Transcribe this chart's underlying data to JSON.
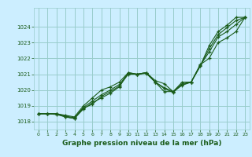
{
  "xlabel": "Graphe pression niveau de la mer (hPa)",
  "xlim": [
    -0.5,
    23.5
  ],
  "ylim": [
    1017.5,
    1025.2
  ],
  "yticks": [
    1018,
    1019,
    1020,
    1021,
    1022,
    1023,
    1024
  ],
  "xticks": [
    0,
    1,
    2,
    3,
    4,
    5,
    6,
    7,
    8,
    9,
    10,
    11,
    12,
    13,
    14,
    15,
    16,
    17,
    18,
    19,
    20,
    21,
    22,
    23
  ],
  "bg_color": "#cceeff",
  "grid_color": "#99cccc",
  "line_color": "#1a5c1a",
  "series": [
    [
      1018.5,
      1018.5,
      1018.5,
      1018.4,
      1018.3,
      1019.0,
      1019.5,
      1020.0,
      1020.2,
      1020.5,
      1021.1,
      1021.0,
      1021.1,
      1020.5,
      1019.9,
      1019.9,
      1020.5,
      1020.5,
      1021.6,
      1022.0,
      1023.0,
      1023.3,
      1023.7,
      1024.6
    ],
    [
      1018.5,
      1018.5,
      1018.5,
      1018.3,
      1018.2,
      1018.8,
      1019.2,
      1019.5,
      1019.8,
      1020.2,
      1021.1,
      1021.0,
      1021.1,
      1020.6,
      1020.4,
      1019.9,
      1020.3,
      1020.5,
      1021.5,
      1022.8,
      1023.7,
      1024.1,
      1024.6,
      1024.6
    ],
    [
      1018.5,
      1018.5,
      1018.5,
      1018.35,
      1018.25,
      1018.9,
      1019.3,
      1019.7,
      1020.0,
      1020.35,
      1021.05,
      1021.0,
      1021.1,
      1020.5,
      1020.15,
      1019.9,
      1020.4,
      1020.5,
      1021.55,
      1022.4,
      1023.35,
      1023.7,
      1024.15,
      1024.6
    ],
    [
      1018.5,
      1018.5,
      1018.45,
      1018.3,
      1018.2,
      1018.85,
      1019.1,
      1019.6,
      1019.9,
      1020.25,
      1021.0,
      1021.0,
      1021.05,
      1020.5,
      1020.1,
      1019.85,
      1020.35,
      1020.5,
      1021.5,
      1022.6,
      1023.5,
      1023.95,
      1024.4,
      1024.6
    ]
  ]
}
